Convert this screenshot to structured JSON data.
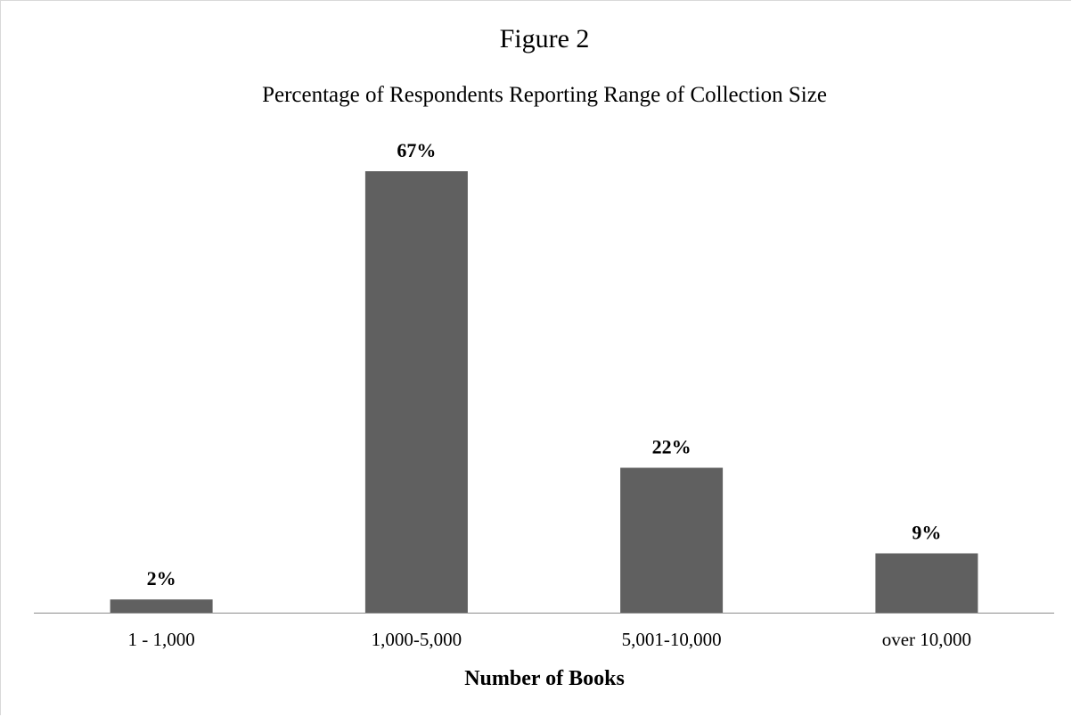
{
  "chart_data": {
    "type": "bar",
    "title": "Figure 2",
    "subtitle": "Percentage of Respondents Reporting Range of Collection Size",
    "xlabel": "Number of Books",
    "ylabel": "",
    "categories": [
      "1 - 1,000",
      "1,000-5,000",
      "5,001-10,000",
      "over 10,000"
    ],
    "values": [
      2,
      67,
      22,
      9
    ],
    "data_labels": [
      "2%",
      "67%",
      "22%",
      "9%"
    ],
    "ylim": [
      0,
      67
    ],
    "grid": false,
    "legend": "none",
    "bar_color": "#606060",
    "axis_color": "#8c8c8c"
  }
}
